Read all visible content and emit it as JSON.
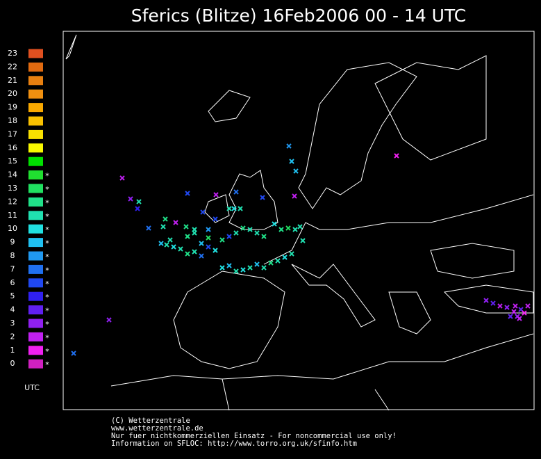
{
  "header": {
    "title": "Sferics (Blitze) 16Feb2006 00 - 14 UTC"
  },
  "legend": {
    "marker_symbol": "*",
    "unit": "UTC",
    "items": [
      {
        "hour": "23",
        "color": "#e05020",
        "marked": false
      },
      {
        "hour": "22",
        "color": "#e06a10",
        "marked": false
      },
      {
        "hour": "21",
        "color": "#e88010",
        "marked": false
      },
      {
        "hour": "20",
        "color": "#f09010",
        "marked": false
      },
      {
        "hour": "19",
        "color": "#f8a800",
        "marked": false
      },
      {
        "hour": "18",
        "color": "#f8c000",
        "marked": false
      },
      {
        "hour": "17",
        "color": "#f8e000",
        "marked": false
      },
      {
        "hour": "16",
        "color": "#f8f800",
        "marked": false
      },
      {
        "hour": "15",
        "color": "#00e000",
        "marked": false
      },
      {
        "hour": "14",
        "color": "#20e030",
        "marked": true
      },
      {
        "hour": "13",
        "color": "#20e060",
        "marked": true
      },
      {
        "hour": "12",
        "color": "#20e088",
        "marked": true
      },
      {
        "hour": "11",
        "color": "#20e0b0",
        "marked": true
      },
      {
        "hour": "10",
        "color": "#20e0e0",
        "marked": true
      },
      {
        "hour": "9",
        "color": "#20c0f0",
        "marked": true
      },
      {
        "hour": "8",
        "color": "#2098f0",
        "marked": true
      },
      {
        "hour": "7",
        "color": "#2070f0",
        "marked": true
      },
      {
        "hour": "6",
        "color": "#2048f0",
        "marked": true
      },
      {
        "hour": "5",
        "color": "#3020f0",
        "marked": true
      },
      {
        "hour": "4",
        "color": "#6020f0",
        "marked": true
      },
      {
        "hour": "3",
        "color": "#9020f0",
        "marked": true
      },
      {
        "hour": "2",
        "color": "#c020f0",
        "marked": true
      },
      {
        "hour": "1",
        "color": "#f020f0",
        "marked": true
      },
      {
        "hour": "0",
        "color": "#d020c0",
        "marked": true
      }
    ]
  },
  "footer": {
    "lines": [
      "(C) Wetterzentrale",
      "www.wetterzentrale.de",
      "Nur fuer nichtkommerziellen Einsatz - For noncommercial use only!",
      "Information on SFLOC: http://www.torro.org.uk/sfinfo.htm"
    ]
  }
}
